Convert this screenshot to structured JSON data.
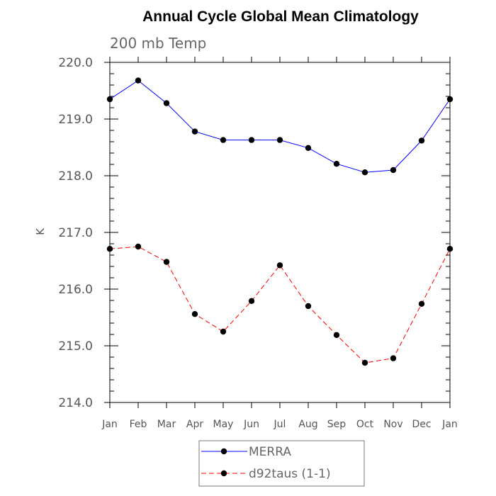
{
  "chart_data": {
    "type": "line",
    "title": "Annual Cycle Global Mean Climatology",
    "subtitle": "200 mb Temp",
    "xlabel": "",
    "ylabel": "K",
    "categories": [
      "Jan",
      "Feb",
      "Mar",
      "Apr",
      "May",
      "Jun",
      "Jul",
      "Aug",
      "Sep",
      "Oct",
      "Nov",
      "Dec",
      "Jan"
    ],
    "ylim": [
      214.0,
      220.0
    ],
    "yticks": [
      "214.0",
      "215.0",
      "216.0",
      "217.0",
      "218.0",
      "219.0",
      "220.0"
    ],
    "grid": false,
    "legend_position": "bottom",
    "series": [
      {
        "name": "MERRA",
        "color": "#0000ff",
        "dash": "solid",
        "marker": "filled-circle",
        "values": [
          219.35,
          219.68,
          219.28,
          218.78,
          218.63,
          218.63,
          218.63,
          218.49,
          218.21,
          218.06,
          218.1,
          218.62,
          219.35
        ]
      },
      {
        "name": "d92taus (1-1)",
        "color": "#ff0000",
        "dash": "dashed",
        "marker": "filled-circle",
        "values": [
          216.71,
          216.75,
          216.48,
          215.56,
          215.25,
          215.79,
          216.42,
          215.7,
          215.19,
          214.7,
          214.78,
          215.74,
          216.71
        ]
      }
    ]
  }
}
